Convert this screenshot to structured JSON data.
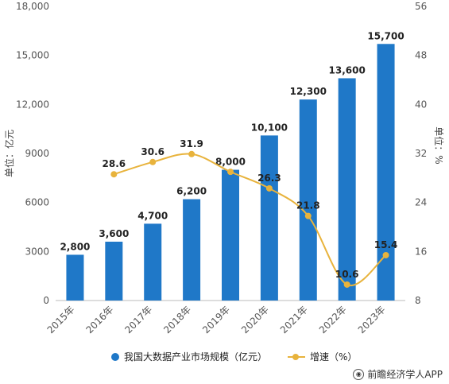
{
  "chart_data": {
    "type": "bar",
    "categories": [
      "2015年",
      "2016年",
      "2017年",
      "2018年",
      "2019年",
      "2020年",
      "2021年",
      "2022年",
      "2023年"
    ],
    "series": [
      {
        "name": "我国大数据产业市场规模（亿元）",
        "type": "bar",
        "axis": "left",
        "values": [
          2800,
          3600,
          4700,
          6200,
          8000,
          10100,
          12300,
          13600,
          15700
        ],
        "labels": [
          "2,800",
          "3,600",
          "4,700",
          "6,200",
          "8,000",
          "10,100",
          "12,300",
          "13,600",
          "15,700"
        ],
        "color": "#1f78c8"
      },
      {
        "name": "增速（%）",
        "type": "line",
        "axis": "right",
        "values": [
          null,
          28.6,
          30.6,
          31.9,
          29.0,
          26.3,
          21.8,
          10.6,
          15.4
        ],
        "labels": [
          "",
          "28.6",
          "30.6",
          "31.9",
          "",
          "26.3",
          "21.8",
          "10.6",
          "15.4"
        ],
        "color": "#e8b33c"
      }
    ],
    "ylabel": "单位：亿元",
    "y2label": "单位：%",
    "ylim": [
      0,
      18000
    ],
    "y2lim": [
      8,
      56
    ],
    "yticks": [
      "0",
      "3000",
      "6000",
      "9000",
      "12,000",
      "15,000",
      "18,000"
    ],
    "y2ticks": [
      "8",
      "16",
      "24",
      "32",
      "40",
      "48",
      "56"
    ],
    "grid": false,
    "legend": "bottom"
  },
  "credit": "前瞻经济学人APP"
}
